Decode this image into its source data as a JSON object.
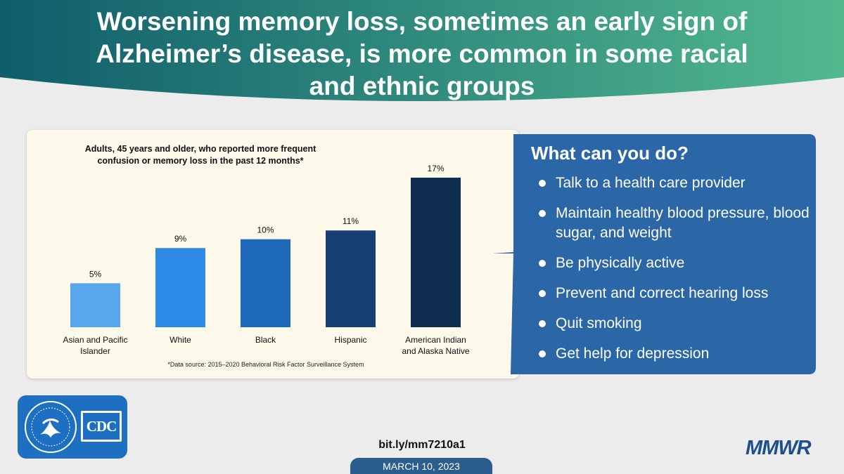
{
  "headline": "Worsening memory loss, sometimes an early sign of Alzheimer’s disease, is more common in some racial and ethnic groups",
  "colors": {
    "header_left": "#0f5d6b",
    "header_right": "#52b98f",
    "panel_bg": "#fcf9eb",
    "tips_bg": "#2b66a6"
  },
  "chart_data": {
    "type": "bar",
    "title": "Adults, 45 years and older, who reported more frequent confusion or memory loss in the past 12 months*",
    "categories": [
      "Asian and Pacific Islander",
      "White",
      "Black",
      "Hispanic",
      "American Indian and Alaska Native"
    ],
    "values": [
      5,
      9,
      10,
      11,
      17
    ],
    "value_labels": [
      "5%",
      "9%",
      "10%",
      "11%",
      "17%"
    ],
    "bar_colors": [
      "#58a6ec",
      "#2d8ae6",
      "#1f6ab8",
      "#183f72",
      "#102d52"
    ],
    "unit": "%",
    "ylim": [
      0,
      17
    ],
    "grid": false,
    "legend": "none",
    "source_note": "*Data source: 2015–2020 Behavioral Risk Factor Surveillance System"
  },
  "tips": {
    "heading": "What can you do?",
    "items": [
      "Talk to a health care provider",
      "Maintain healthy blood pressure, blood sugar, and weight",
      "Be physically active",
      "Prevent and correct hearing loss",
      "Quit smoking",
      "Get help for depression"
    ]
  },
  "footer": {
    "logo_text": "CDC",
    "url": "bit.ly/mm7210a1",
    "date": "MARCH 10, 2023",
    "brand": "MMWR"
  }
}
